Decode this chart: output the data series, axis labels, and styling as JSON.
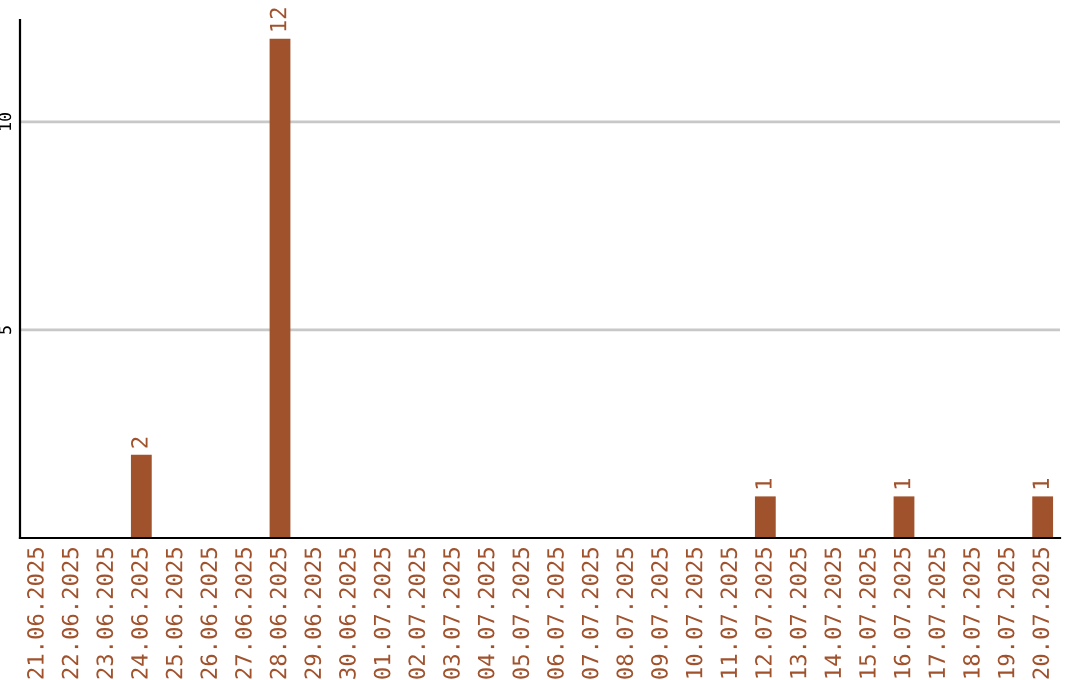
{
  "chart_data": {
    "type": "bar",
    "categories": [
      "21.06.2025",
      "22.06.2025",
      "23.06.2025",
      "24.06.2025",
      "25.06.2025",
      "26.06.2025",
      "27.06.2025",
      "28.06.2025",
      "29.06.2025",
      "30.06.2025",
      "01.07.2025",
      "02.07.2025",
      "03.07.2025",
      "04.07.2025",
      "05.07.2025",
      "06.07.2025",
      "07.07.2025",
      "08.07.2025",
      "09.07.2025",
      "10.07.2025",
      "11.07.2025",
      "12.07.2025",
      "13.07.2025",
      "14.07.2025",
      "15.07.2025",
      "16.07.2025",
      "17.07.2025",
      "18.07.2025",
      "19.07.2025",
      "20.07.2025"
    ],
    "values": [
      0,
      0,
      0,
      2,
      0,
      0,
      0,
      12,
      0,
      0,
      0,
      0,
      0,
      0,
      0,
      0,
      0,
      0,
      0,
      0,
      0,
      1,
      0,
      0,
      0,
      1,
      0,
      0,
      0,
      1
    ],
    "value_labels": [
      null,
      null,
      null,
      "2",
      null,
      null,
      null,
      "12",
      null,
      null,
      null,
      null,
      null,
      null,
      null,
      null,
      null,
      null,
      null,
      null,
      null,
      "1",
      null,
      null,
      null,
      "1",
      null,
      null,
      null,
      "1"
    ],
    "color": "#a0522d",
    "ylim": [
      0,
      12.45
    ],
    "yticks": [
      5,
      10
    ],
    "grid": "y",
    "legend": false
  }
}
